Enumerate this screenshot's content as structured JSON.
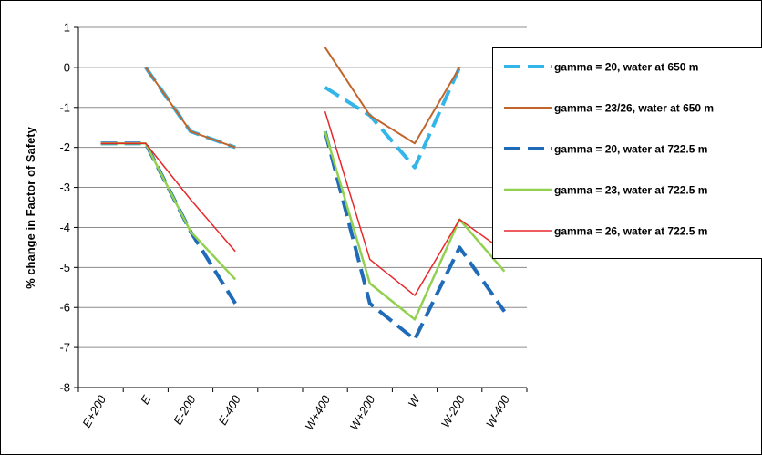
{
  "chart_data": {
    "type": "line",
    "y_label": "% change in Factor of Safety",
    "categories": [
      "E+200",
      "E",
      "E-200",
      "E-400",
      null,
      "W+400",
      "W+200",
      "W",
      "W-200",
      "W-400"
    ],
    "series": [
      {
        "name": "gamma = 20, water at 650 m",
        "color": "#33b5ea",
        "dashed": true,
        "width": 4,
        "values": [
          null,
          0,
          -1.6,
          -2.0,
          null,
          -0.5,
          -1.2,
          -2.5,
          0,
          null
        ]
      },
      {
        "name": "gamma = 23/26, water at 650 m",
        "color": "#c0652b",
        "dashed": false,
        "width": 2,
        "values": [
          null,
          0,
          -1.6,
          -2.0,
          null,
          0.5,
          -1.2,
          -1.9,
          0,
          null
        ]
      },
      {
        "name": "gamma = 20, water at 722.5 m",
        "color": "#1f6bb8",
        "dashed": true,
        "width": 4,
        "values": [
          -1.9,
          -1.9,
          -4.1,
          -5.9,
          null,
          -1.6,
          -5.9,
          -6.8,
          -4.5,
          -6.1
        ]
      },
      {
        "name": "gamma = 23, water at 722.5 m",
        "color": "#92d050",
        "dashed": false,
        "width": 2.5,
        "values": [
          -1.9,
          -1.9,
          -4.1,
          -5.3,
          null,
          -1.6,
          -5.4,
          -6.3,
          -3.8,
          -5.1
        ]
      },
      {
        "name": "gamma = 26, water at 722.5 m",
        "color": "#e8282b",
        "dashed": false,
        "width": 1.5,
        "values": [
          -1.9,
          -1.9,
          -3.3,
          -4.6,
          null,
          -1.1,
          -4.8,
          -5.7,
          -3.8,
          -4.6
        ]
      }
    ],
    "ylim": [
      -8,
      1
    ],
    "yticks": [
      -8,
      -7,
      -6,
      -5,
      -4,
      -3,
      -2,
      -1,
      0,
      1
    ],
    "grid": true,
    "legend": "right"
  }
}
